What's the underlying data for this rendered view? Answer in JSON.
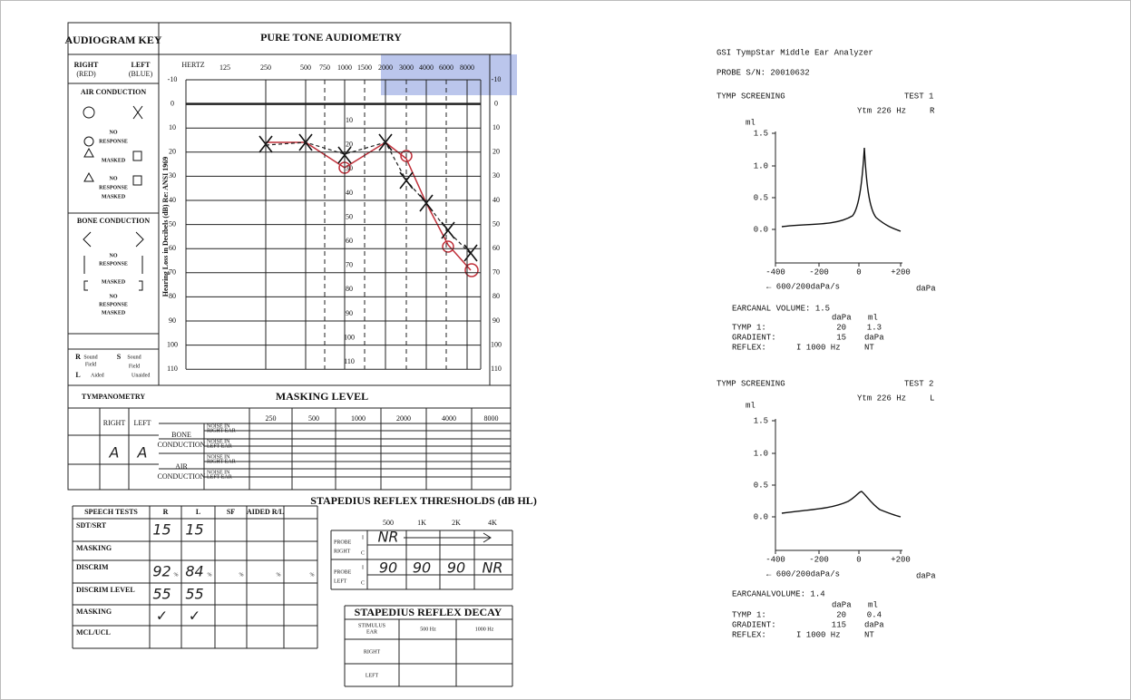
{
  "audiogram": {
    "key_title": "AUDIOGRAM KEY",
    "title": "PURE TONE AUDIOMETRY",
    "right": "RIGHT",
    "right_color": "(RED)",
    "left": "LEFT",
    "left_color": "(BLUE)",
    "air_conduction": "AIR CONDUCTION",
    "air_items": [
      [
        "NO",
        "RESPONSE"
      ],
      [
        "MASKED"
      ],
      [
        "NO",
        "RESPONSE",
        "MASKED"
      ]
    ],
    "bone_conduction": "BONE CONDUCTION",
    "bone_items": [
      [
        "NO",
        "RESPONSE"
      ],
      [
        "MASKED"
      ],
      [
        "NO",
        "RESPONSE",
        "MASKED"
      ]
    ],
    "sound_field": [
      "R",
      "Sound",
      "Field",
      "S",
      "Sound",
      "Field",
      "L",
      "Aided",
      "Unaided"
    ],
    "hertz": "HERTZ",
    "freqs": [
      "125",
      "250",
      "500",
      "750",
      "1000",
      "1500",
      "2000",
      "3000",
      "4000",
      "6000",
      "8000"
    ],
    "db_levels": [
      "-10",
      "0",
      "10",
      "20",
      "30",
      "40",
      "50",
      "60",
      "70",
      "80",
      "90",
      "100",
      "110"
    ],
    "y_axis_label": "Hearing Loss in Decibels (dB) Re: ANSI 1969"
  },
  "tympanometry": {
    "title": "TYMPANOMETRY",
    "right": "RIGHT",
    "left": "LEFT",
    "right_type": "A",
    "left_type": "A"
  },
  "masking": {
    "title": "MASKING LEVEL",
    "freqs": [
      "250",
      "500",
      "1000",
      "2000",
      "4000",
      "8000"
    ],
    "bone": [
      "BONE",
      "CONDUCTION"
    ],
    "air": [
      "AIR",
      "CONDUCTION"
    ],
    "noise_right": [
      "NOISE IN",
      "RIGHT EAR"
    ],
    "noise_left": [
      "NOISE IN",
      "LEFT EAR"
    ]
  },
  "speech": {
    "headers": [
      "SPEECH TESTS",
      "R",
      "L",
      "SF",
      "AIDED R/L"
    ],
    "rows": [
      [
        "SDT/SRT",
        "15",
        "15"
      ],
      [
        "MASKING"
      ],
      [
        "DISCRIM",
        "92",
        "84"
      ],
      [
        "DISCRIM LEVEL",
        "55",
        "55"
      ],
      [
        "MASKING",
        "✓",
        "✓"
      ],
      [
        "MCL/UCL"
      ]
    ],
    "percent": "%"
  },
  "reflex": {
    "title": "STAPEDIUS REFLEX THRESHOLDS (dB HL)",
    "freqs": [
      "500",
      "1K",
      "2K",
      "4K"
    ],
    "probe_right": [
      "PROBE",
      "RIGHT"
    ],
    "probe_left": [
      "PROBE",
      "LEFT"
    ],
    "i": "I",
    "c": "C",
    "right_i": [
      "NR"
    ],
    "left_i": [
      "90",
      "90",
      "90",
      "NR"
    ]
  },
  "decay": {
    "title": "STAPEDIUS REFLEX DECAY",
    "stimulus_ear": [
      "STIMULUS",
      "EAR"
    ],
    "freqs": [
      "500 Hz",
      "1000 Hz"
    ],
    "rows": [
      "RIGHT",
      "LEFT"
    ]
  },
  "analyzer": {
    "title": "GSI TympStar Middle Ear Analyzer",
    "probe": "PROBE S/N: 20010632",
    "tests": [
      {
        "screening": "TYMP SCREENING",
        "test": "TEST 1",
        "ytm": "Ytm 226 Hz",
        "ear": "R",
        "unit": "ml",
        "yticks": [
          "1.5",
          "1.0",
          "0.5",
          "0.0"
        ],
        "xticks": [
          "-400",
          "-200",
          "0",
          "+200"
        ],
        "rate": "← 600/200daPa/s",
        "xunit": "daPa",
        "ear_canal": "EARCANAL VOLUME: 1.5",
        "col_dapa": "daPa",
        "col_ml": "ml",
        "tymp": "TYMP 1:",
        "tymp_dapa": "20",
        "tymp_ml": "1.3",
        "gradient": "GRADIENT:",
        "gradient_val": "15",
        "gradient_unit": "daPa",
        "reflex": "REFLEX:",
        "reflex_val": "I  1000 Hz",
        "reflex_res": "NT"
      },
      {
        "screening": "TYMP SCREENING",
        "test": "TEST 2",
        "ytm": "Ytm 226 Hz",
        "ear": "L",
        "unit": "ml",
        "yticks": [
          "1.5",
          "1.0",
          "0.5",
          "0.0"
        ],
        "xticks": [
          "-400",
          "-200",
          "0",
          "+200"
        ],
        "rate": "← 600/200daPa/s",
        "xunit": "daPa",
        "ear_canal": "EARCANALVOLUME: 1.4",
        "col_dapa": "daPa",
        "col_ml": "ml",
        "tymp": "TYMP 1:",
        "tymp_dapa": "20",
        "tymp_ml": "0.4",
        "gradient": "GRADIENT:",
        "gradient_val": "115",
        "gradient_unit": "daPa",
        "reflex": "REFLEX:",
        "reflex_val": "I  1000 Hz",
        "reflex_res": "NT"
      }
    ]
  }
}
